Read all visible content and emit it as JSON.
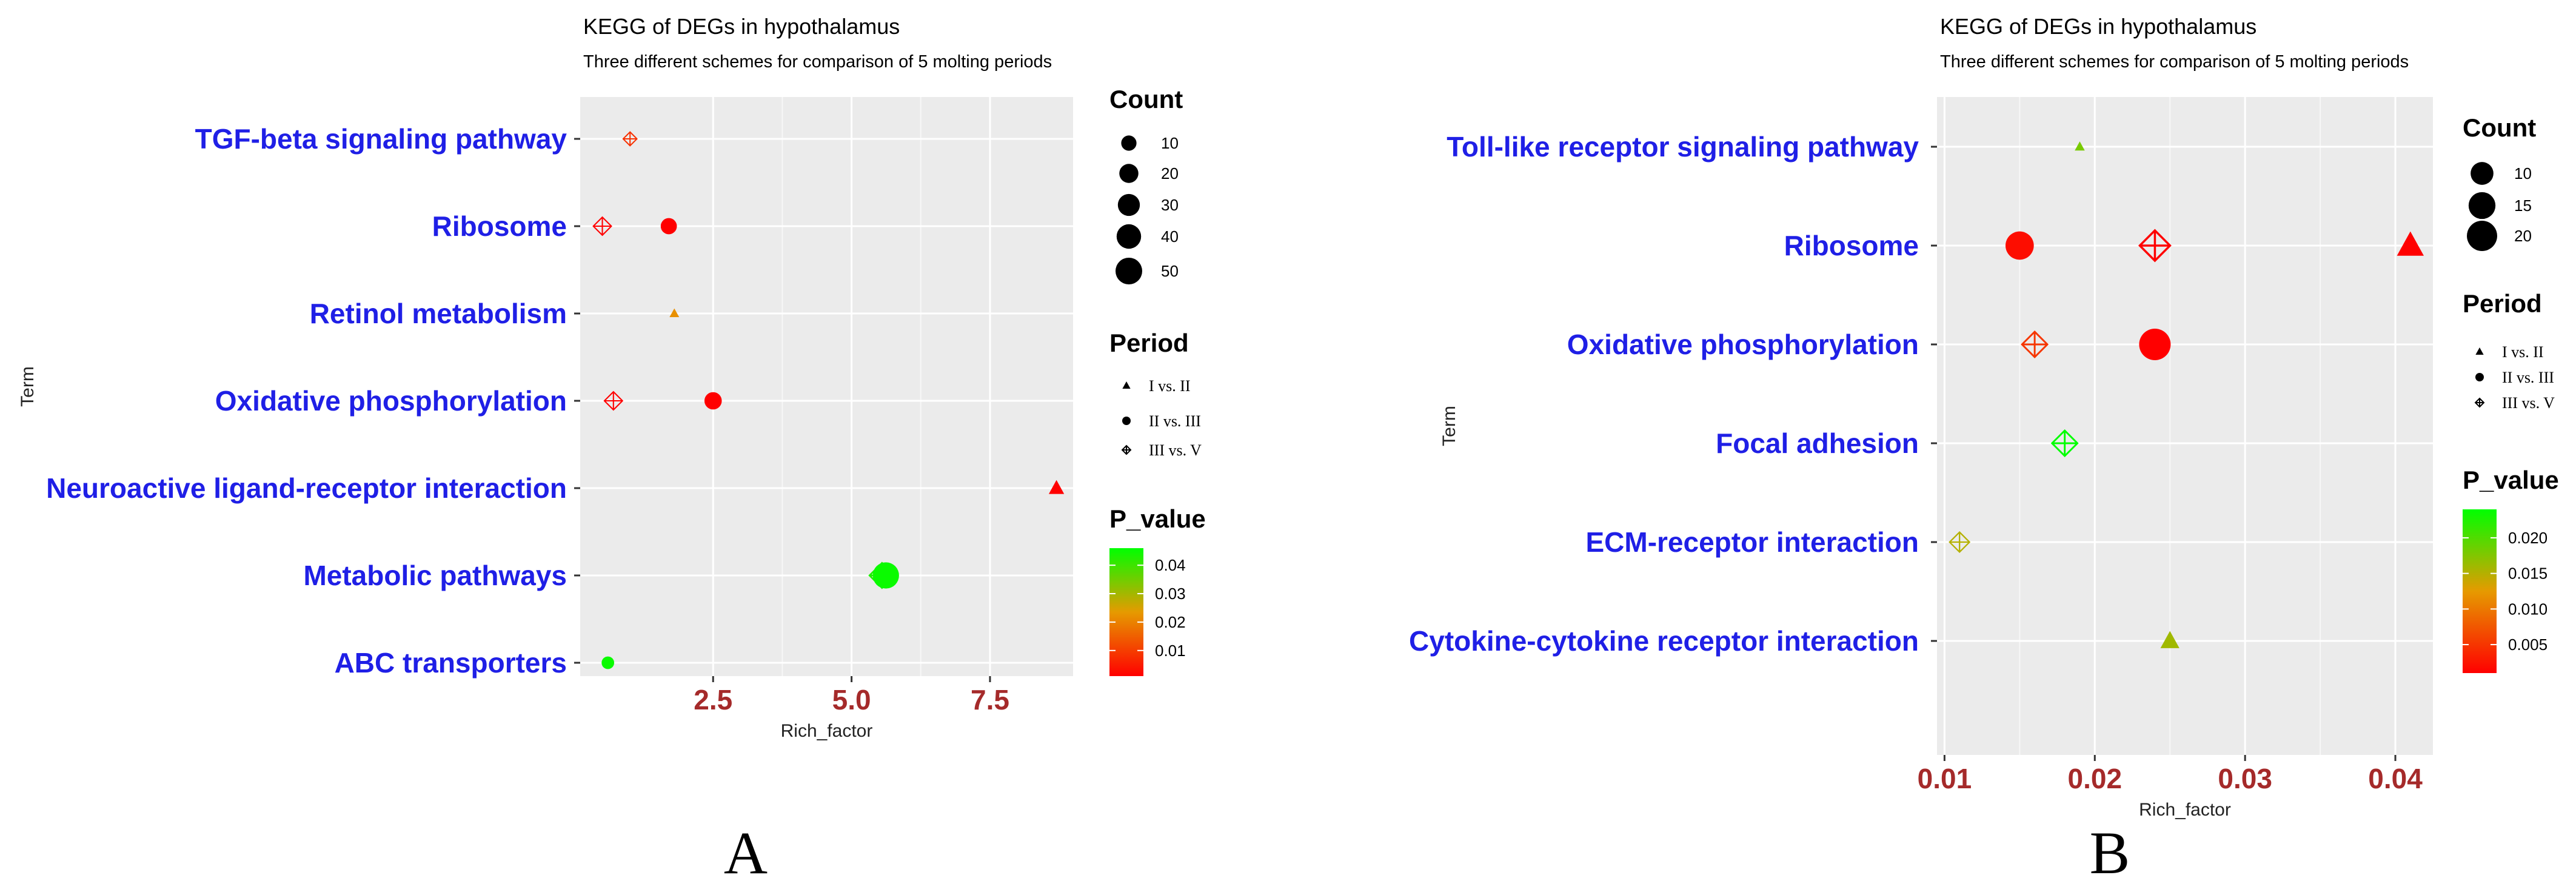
{
  "chart_data": [
    {
      "panel": "A",
      "type": "scatter",
      "title": "KEGG of DEGs in hypothalamus",
      "subtitle": "Three different schemes for comparison of 5 molting periods",
      "xlabel": "Rich_factor",
      "ylabel": "Term",
      "xlim": [
        0.1,
        9.0
      ],
      "xticks": [
        2.5,
        5.0,
        7.5
      ],
      "xtick_labels": [
        "2.5",
        "5.0",
        "7.5"
      ],
      "terms": [
        "TGF-beta signaling pathway",
        "Ribosome",
        "Retinol metabolism",
        "Oxidative phosphorylation",
        "Neuroactive ligand-receptor interaction",
        "Metabolic pathways",
        "ABC transporters"
      ],
      "points": [
        {
          "term": "TGF-beta signaling pathway",
          "x": 1.0,
          "period": "III vs. V",
          "count": 7,
          "p": 0.008
        },
        {
          "term": "Ribosome",
          "x": 0.5,
          "period": "III vs. V",
          "count": 17,
          "p": 0.001
        },
        {
          "term": "Ribosome",
          "x": 1.7,
          "period": "II vs. III",
          "count": 12,
          "p": 0.001
        },
        {
          "term": "Retinol metabolism",
          "x": 1.8,
          "period": "I vs. II",
          "count": 2,
          "p": 0.022
        },
        {
          "term": "Oxidative phosphorylation",
          "x": 0.7,
          "period": "III vs. V",
          "count": 17,
          "p": 0.001
        },
        {
          "term": "Oxidative phosphorylation",
          "x": 2.5,
          "period": "II vs. III",
          "count": 15,
          "p": 0.001
        },
        {
          "term": "Neuroactive ligand-receptor interaction",
          "x": 8.7,
          "period": "I vs. II",
          "count": 12,
          "p": 0.001
        },
        {
          "term": "Metabolic pathways",
          "x": 5.55,
          "period": "III vs. V",
          "count": 42,
          "p": 0.043
        },
        {
          "term": "Metabolic pathways",
          "x": 5.62,
          "period": "II vs. III",
          "count": 48,
          "p": 0.045
        },
        {
          "term": "ABC transporters",
          "x": 0.6,
          "period": "II vs. III",
          "count": 5,
          "p": 0.045
        }
      ],
      "legend_count": {
        "title": "Count",
        "values": [
          10,
          20,
          30,
          40,
          50
        ]
      },
      "legend_period": {
        "title": "Period",
        "items": [
          "I vs. II",
          "II vs. III",
          "III vs. V"
        ]
      },
      "legend_p": {
        "title": "P_value",
        "min": 0.001,
        "max": 0.046,
        "ticks": [
          0.01,
          0.02,
          0.03,
          0.04
        ],
        "tick_labels": [
          "0.01",
          "0.02",
          "0.03",
          "0.04"
        ]
      }
    },
    {
      "panel": "B",
      "type": "scatter",
      "title": "KEGG of DEGs in hypothalamus",
      "subtitle": "Three different schemes for comparison of 5 molting periods",
      "xlabel": "Rich_factor",
      "ylabel": "Term",
      "xlim": [
        0.0095,
        0.0425
      ],
      "xticks": [
        0.01,
        0.02,
        0.03,
        0.04
      ],
      "xtick_labels": [
        "0.01",
        "0.02",
        "0.03",
        "0.04"
      ],
      "terms": [
        "Toll-like receptor signaling pathway",
        "Ribosome",
        "Oxidative phosphorylation",
        "Focal adhesion",
        "ECM-receptor interaction",
        "Cytokine-cytokine receptor interaction"
      ],
      "points": [
        {
          "term": "Toll-like receptor signaling pathway",
          "x": 0.019,
          "period": "I vs. II",
          "count": 1,
          "p": 0.018
        },
        {
          "term": "Ribosome",
          "x": 0.015,
          "period": "II vs. III",
          "count": 17,
          "p": 0.002
        },
        {
          "term": "Ribosome",
          "x": 0.024,
          "period": "III vs. V",
          "count": 20,
          "p": 0.001
        },
        {
          "term": "Ribosome",
          "x": 0.041,
          "period": "I vs. II",
          "count": 17,
          "p": 0.001
        },
        {
          "term": "Oxidative phosphorylation",
          "x": 0.016,
          "period": "III vs. V",
          "count": 13,
          "p": 0.005
        },
        {
          "term": "Oxidative phosphorylation",
          "x": 0.024,
          "period": "II vs. III",
          "count": 22,
          "p": 0.001
        },
        {
          "term": "Focal adhesion",
          "x": 0.018,
          "period": "III vs. V",
          "count": 13,
          "p": 0.024
        },
        {
          "term": "ECM-receptor interaction",
          "x": 0.011,
          "period": "III vs. V",
          "count": 7,
          "p": 0.015
        },
        {
          "term": "Cytokine-cytokine receptor interaction",
          "x": 0.025,
          "period": "I vs. II",
          "count": 7,
          "p": 0.016
        }
      ],
      "legend_count": {
        "title": "Count",
        "values": [
          10,
          15,
          20
        ]
      },
      "legend_period": {
        "title": "Period",
        "items": [
          "I vs. II",
          "II vs. III",
          "III vs. V"
        ]
      },
      "legend_p": {
        "title": "P_value",
        "min": 0.001,
        "max": 0.024,
        "ticks": [
          0.005,
          0.01,
          0.015,
          0.02
        ],
        "tick_labels": [
          "0.005",
          "0.010",
          "0.015",
          "0.020"
        ]
      }
    }
  ],
  "colors": {
    "low": "#ff0000",
    "mid": "#e69a00",
    "high": "#00ff00",
    "panel_bg": "#ebebeb",
    "grid": "#ffffff",
    "term": "#1f1fe6",
    "tick": "#a52a2a"
  }
}
